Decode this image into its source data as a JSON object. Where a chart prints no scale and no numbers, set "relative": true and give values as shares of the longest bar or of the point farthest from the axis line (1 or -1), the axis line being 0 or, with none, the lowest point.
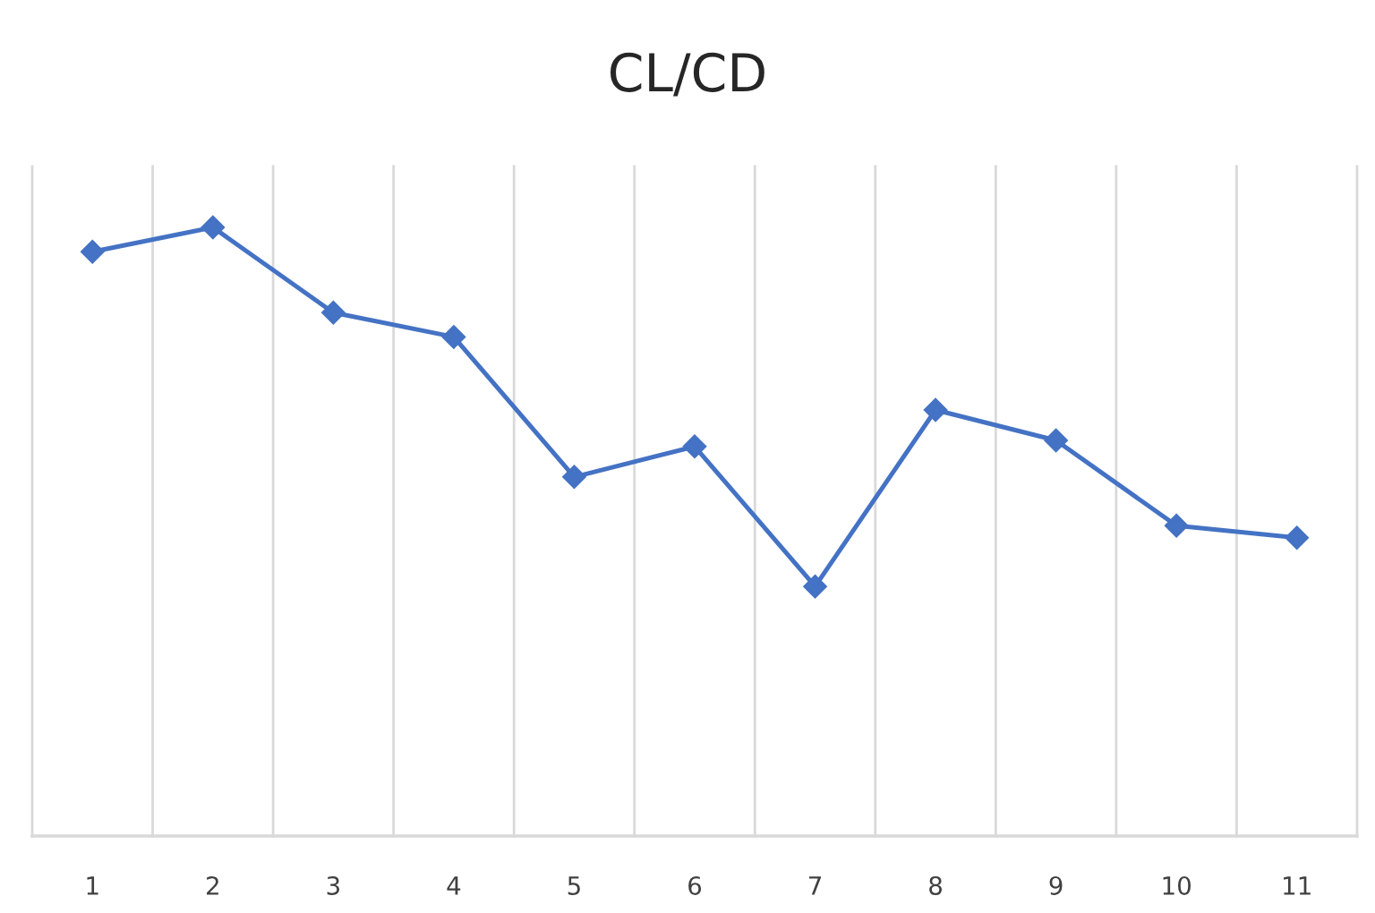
{
  "chart_data": {
    "type": "line",
    "title": "CL/CD",
    "categories": [
      "1",
      "2",
      "3",
      "4",
      "5",
      "6",
      "7",
      "8",
      "9",
      "10",
      "11"
    ],
    "relative": true,
    "series": [
      {
        "color": "#4472c4",
        "values": [
          0.96,
          1,
          0.86,
          0.82,
          0.59,
          0.64,
          0.41,
          0.7,
          0.65,
          0.51,
          0.49
        ]
      }
    ],
    "marker": "diamond",
    "line_style": "solid",
    "grid": "x"
  }
}
